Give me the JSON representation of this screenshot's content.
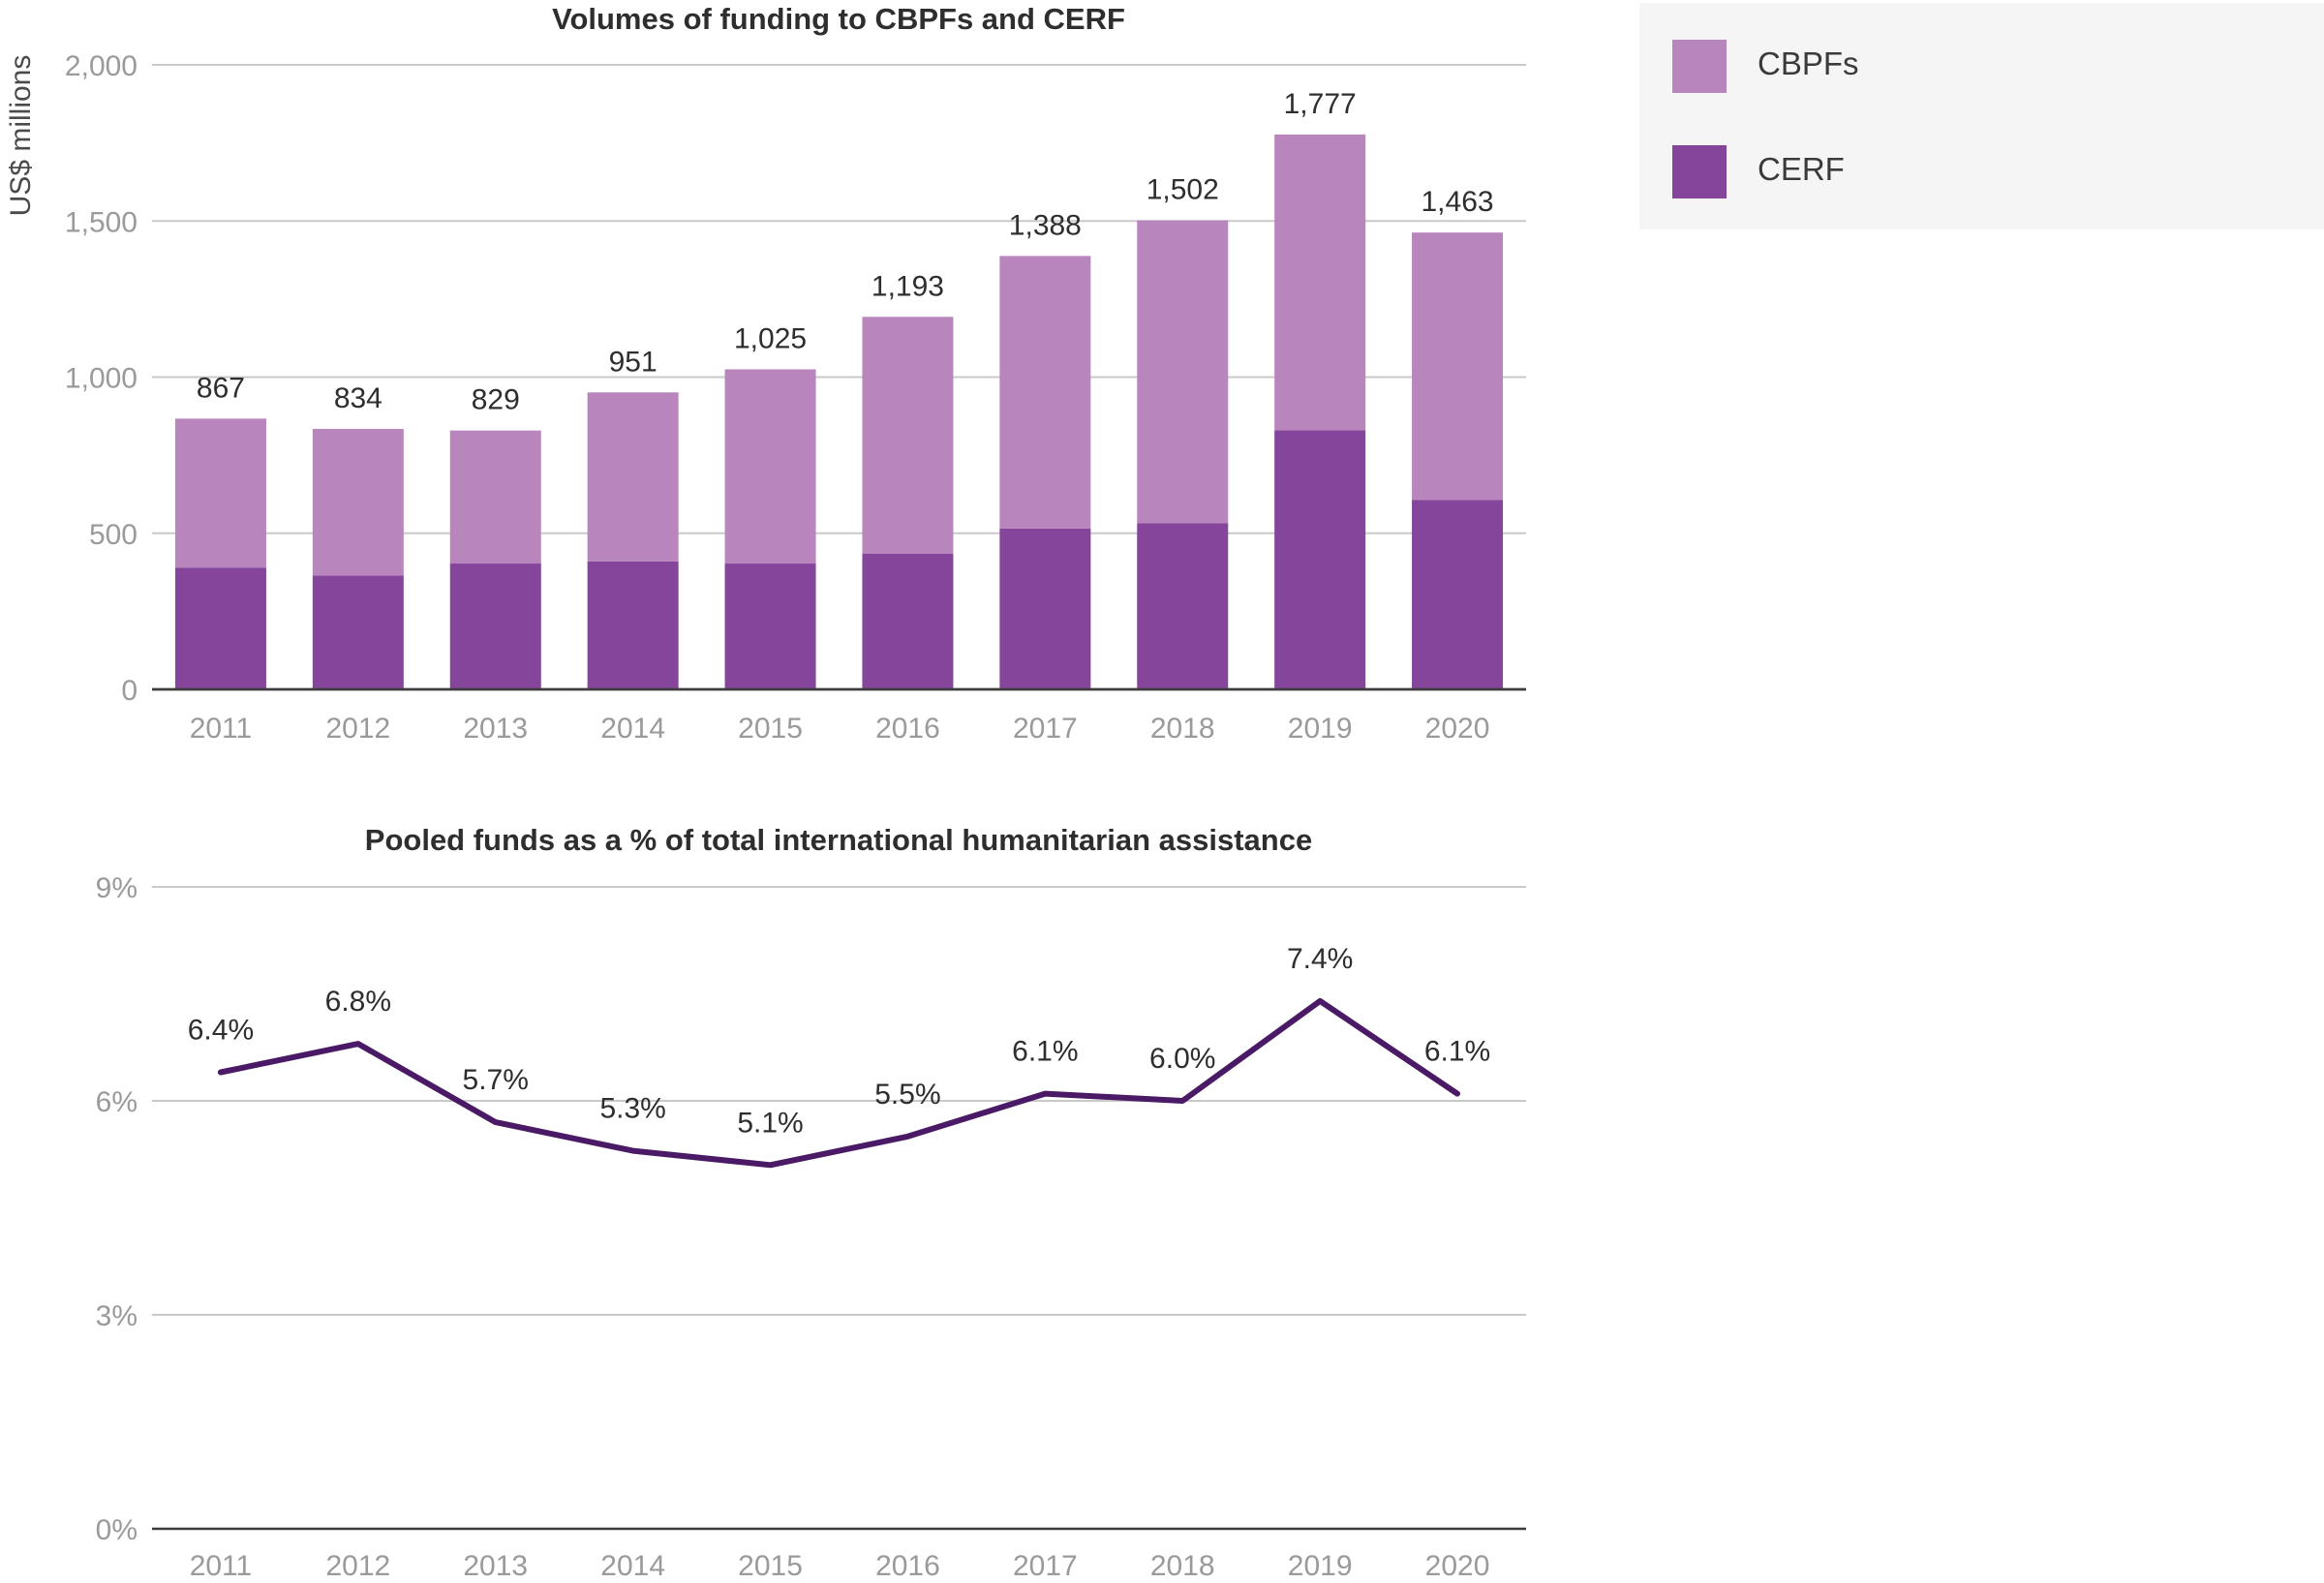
{
  "chart_data": [
    {
      "type": "bar",
      "stacked": true,
      "title": "Volumes of funding to CBPFs and CERF",
      "ylabel": "US$ millions",
      "xlabel": "",
      "categories": [
        "2011",
        "2012",
        "2013",
        "2014",
        "2015",
        "2016",
        "2017",
        "2018",
        "2019",
        "2020"
      ],
      "series": [
        {
          "name": "CERF",
          "color": "#84459a",
          "values": [
            390,
            365,
            403,
            410,
            403,
            435,
            515,
            532,
            830,
            607
          ]
        },
        {
          "name": "CBPFs",
          "color": "#b985bd",
          "values": [
            477,
            469,
            426,
            541,
            622,
            758,
            873,
            970,
            947,
            856
          ]
        }
      ],
      "totals": [
        867,
        834,
        829,
        951,
        1025,
        1193,
        1388,
        1502,
        1777,
        1463
      ],
      "total_labels": [
        "867",
        "834",
        "829",
        "951",
        "1,025",
        "1,193",
        "1,388",
        "1,502",
        "1,777",
        "1,463"
      ],
      "ylim": [
        0,
        2000
      ],
      "yticks": [
        0,
        500,
        1000,
        1500,
        2000
      ],
      "ytick_labels": [
        "0",
        "500",
        "1,000",
        "1,500",
        "2,000"
      ],
      "grid": true,
      "legend": "top-right"
    },
    {
      "type": "line",
      "title": "Pooled funds as a % of total international humanitarian assistance",
      "xlabel": "",
      "ylabel": "",
      "x": [
        "2011",
        "2012",
        "2013",
        "2014",
        "2015",
        "2016",
        "2017",
        "2018",
        "2019",
        "2020"
      ],
      "series": [
        {
          "color": "#4b1a66",
          "values": [
            6.4,
            6.8,
            5.7,
            5.3,
            5.1,
            5.5,
            6.1,
            6.0,
            7.4,
            6.1
          ],
          "labels": [
            "6.4%",
            "6.8%",
            "5.7%",
            "5.3%",
            "5.1%",
            "5.5%",
            "6.1%",
            "6.0%",
            "7.4%",
            "6.1%"
          ]
        }
      ],
      "ylim": [
        0,
        9
      ],
      "yticks": [
        0,
        3,
        6,
        9
      ],
      "ytick_labels": [
        "0%",
        "3%",
        "6%",
        "9%"
      ],
      "grid": true
    }
  ],
  "legend": {
    "items": [
      {
        "label": "CBPFs",
        "color": "#b985bd"
      },
      {
        "label": "CERF",
        "color": "#84459a"
      }
    ]
  }
}
